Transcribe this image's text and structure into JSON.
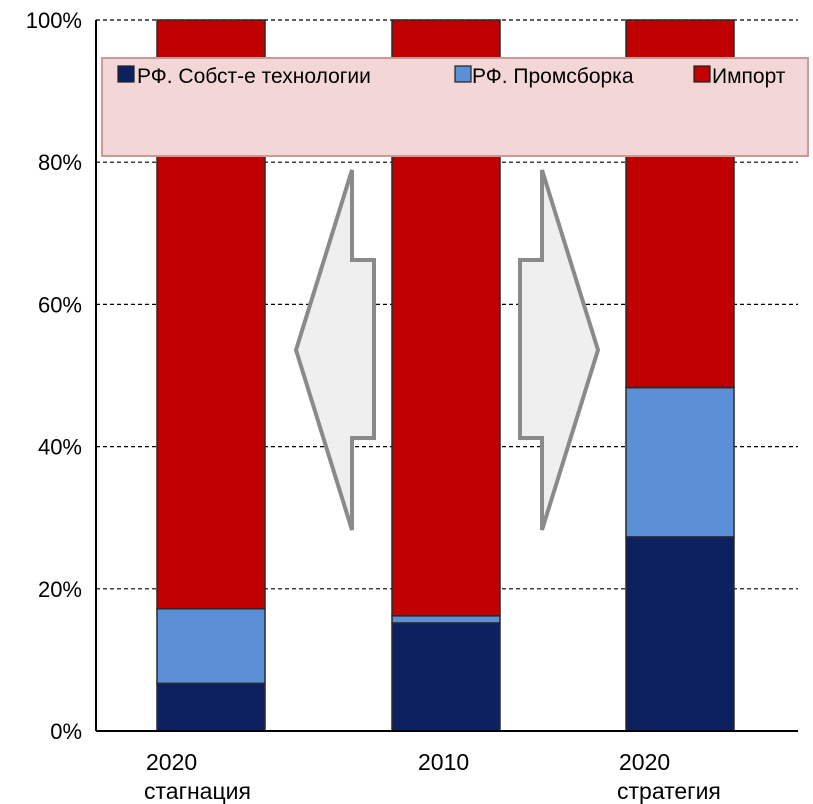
{
  "chart_data": {
    "type": "bar",
    "stacked": true,
    "percent_stacked": true,
    "categories": [
      [
        "2020",
        "стагнация"
      ],
      [
        "2010",
        ""
      ],
      [
        "2020",
        "стратегия"
      ]
    ],
    "series": [
      {
        "name": "РФ. Собст-е технологии",
        "color": "#0d2060",
        "values": [
          6.7,
          15.2,
          27.3
        ]
      },
      {
        "name": "РФ. Промсборка",
        "color": "#5b8fd6",
        "values": [
          10.5,
          1.0,
          21.0
        ]
      },
      {
        "name": "Импорт",
        "color": "#c00000",
        "values": [
          82.8,
          83.8,
          51.7
        ]
      }
    ],
    "ylim": [
      0,
      100
    ],
    "yticks": [
      "0%",
      "20%",
      "40%",
      "60%",
      "80%",
      "100%"
    ],
    "ytick_values": [
      0,
      20,
      40,
      60,
      80,
      100
    ],
    "grid": true,
    "legend": {
      "placement": "top",
      "background": "#f3d6d6",
      "border": "#c89a9a"
    },
    "annotations": [
      {
        "type": "arrow",
        "direction": "left",
        "between": [
          0,
          1
        ]
      },
      {
        "type": "arrow",
        "direction": "right",
        "between": [
          1,
          2
        ]
      }
    ]
  }
}
